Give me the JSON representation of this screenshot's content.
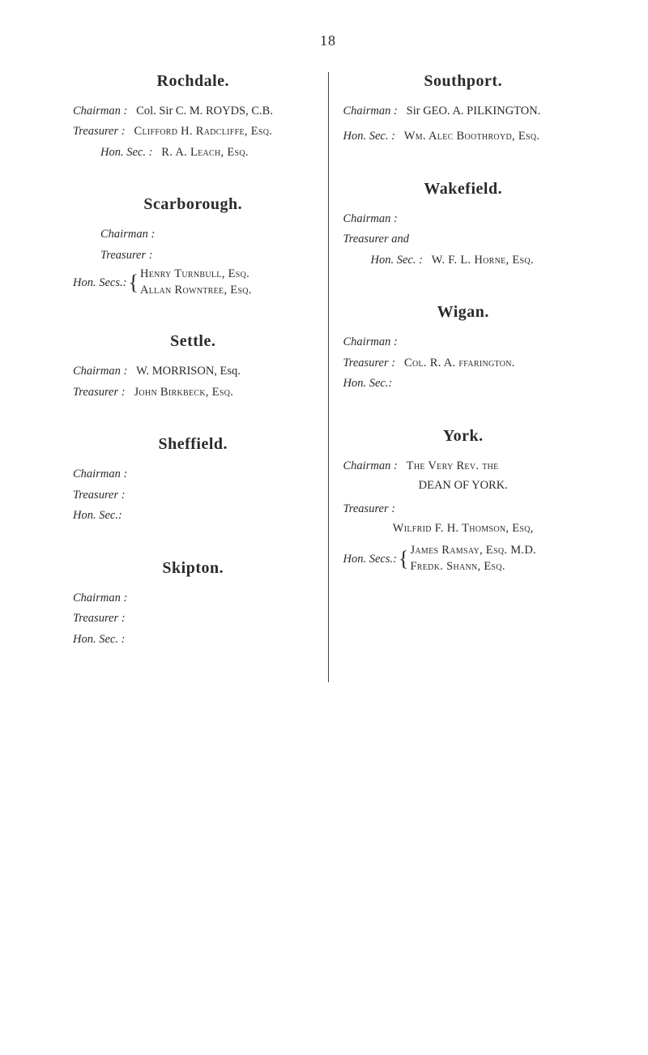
{
  "page_number": "18",
  "left": {
    "rochdale": {
      "heading": "Rochdale.",
      "chairman_label": "Chairman :",
      "chairman_value": "Col. Sir C. M. ROYDS, C.B.",
      "treasurer_label": "Treasurer :",
      "treasurer_value": "Clifford H. Radcliffe, Esq.",
      "honsec_label": "Hon. Sec. :",
      "honsec_value": "R. A. Leach, Esq."
    },
    "scarborough": {
      "heading": "Scarborough.",
      "chairman_label": "Chairman :",
      "treasurer_label": "Treasurer :",
      "honsecs_label": "Hon. Secs.:",
      "honsecs_line1": "Henry Turnbull, Esq.",
      "honsecs_line2": "Allan Rowntree, Esq."
    },
    "settle": {
      "heading": "Settle.",
      "chairman_label": "Chairman :",
      "chairman_value": "W. MORRISON, Esq.",
      "treasurer_label": "Treasurer :",
      "treasurer_value": "John Birkbeck, Esq."
    },
    "sheffield": {
      "heading": "Sheffield.",
      "chairman_label": "Chairman :",
      "treasurer_label": "Treasurer :",
      "honsec_label": "Hon. Sec.:"
    },
    "skipton": {
      "heading": "Skipton.",
      "chairman_label": "Chairman :",
      "treasurer_label": "Treasurer :",
      "honsec_label": "Hon. Sec. :"
    }
  },
  "right": {
    "southport": {
      "heading": "Southport.",
      "chairman_label": "Chairman :",
      "chairman_value": "Sir GEO. A. PILKINGTON.",
      "honsec_label": "Hon. Sec. :",
      "honsec_value": "Wm. Alec Boothroyd, Esq."
    },
    "wakefield": {
      "heading": "Wakefield.",
      "chairman_label": "Chairman :",
      "treasurer_label": "Treasurer and",
      "honsec_label": "Hon. Sec. :",
      "honsec_value": "W. F. L. Horne, Esq."
    },
    "wigan": {
      "heading": "Wigan.",
      "chairman_label": "Chairman :",
      "treasurer_label": "Treasurer :",
      "treasurer_value": "Col. R. A. ffarington.",
      "honsec_label": "Hon. Sec.:"
    },
    "york": {
      "heading": "York.",
      "chairman_label": "Chairman :",
      "chairman_line1": "The Very Rev. the",
      "chairman_line2": "DEAN OF YORK.",
      "treasurer_label": "Treasurer :",
      "treasurer_value": "Wilfrid F. H. Thomson, Esq,",
      "honsecs_label": "Hon. Secs.:",
      "honsecs_line1": "James Ramsay, Esq.  M.D.",
      "honsecs_line2": "Fredk. Shann, Esq."
    }
  }
}
